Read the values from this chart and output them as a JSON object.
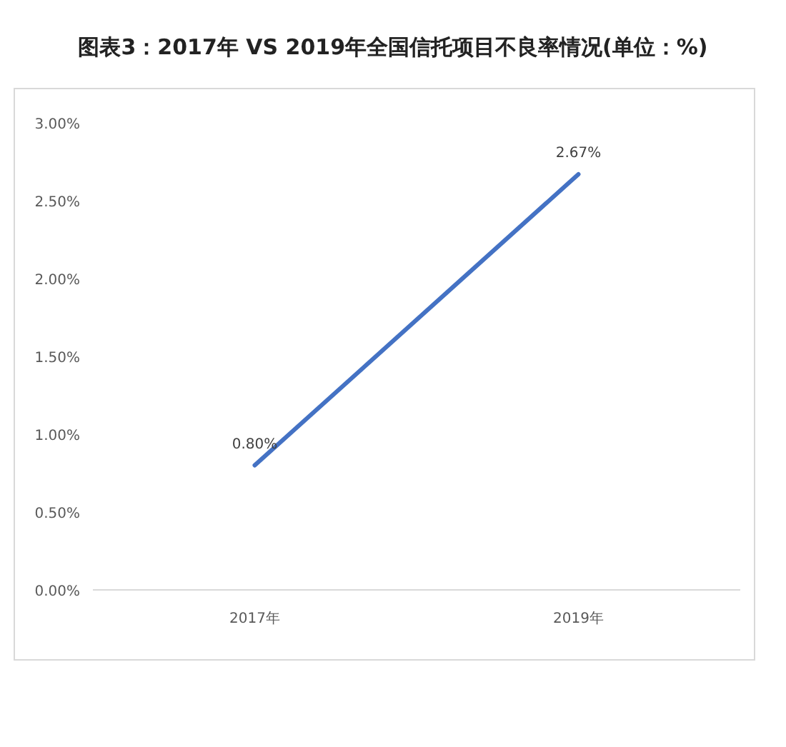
{
  "chart_data": {
    "type": "line",
    "title": "图表3：2017年 VS 2019年全国信托项目不良率情况(单位：%)",
    "categories": [
      "2017年",
      "2019年"
    ],
    "series": [
      {
        "color": "#4472c4",
        "values": [
          0.8,
          2.67
        ],
        "value_labels": [
          "0.80%",
          "2.67%"
        ]
      }
    ],
    "ylim": [
      0,
      3
    ],
    "yticks": [
      {
        "value": 0,
        "label": "0.00%"
      },
      {
        "value": 0.5,
        "label": "0.50%"
      },
      {
        "value": 1,
        "label": "1.00%"
      },
      {
        "value": 1.5,
        "label": "1.50%"
      },
      {
        "value": 2,
        "label": "2.00%"
      },
      {
        "value": 2.5,
        "label": "2.50%"
      },
      {
        "value": 3,
        "label": "3.00%"
      }
    ],
    "grid": false,
    "marker": "none",
    "line_style": "solid"
  }
}
